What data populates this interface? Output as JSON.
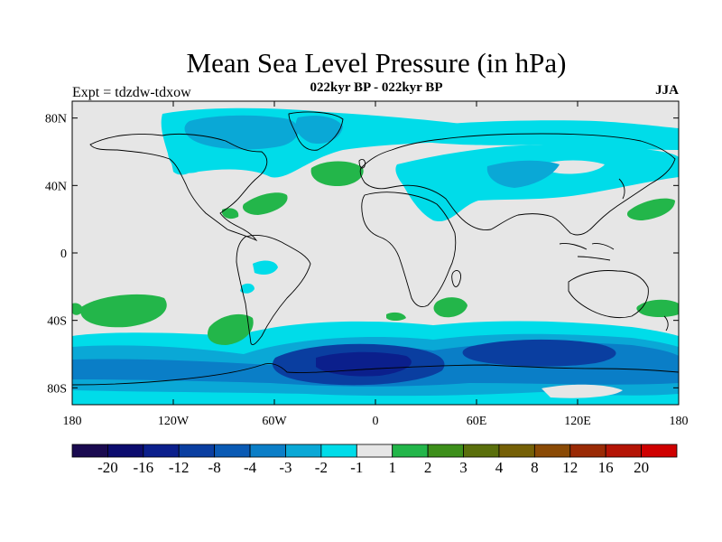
{
  "header": {
    "title": "Mean Sea Level Pressure (in hPa)",
    "subtitle": "022kyr BP - 022kyr BP",
    "expt": "Expt = tdzdw-tdxow",
    "season": "JJA"
  },
  "map": {
    "x_ticks": [
      "180",
      "120W",
      "60W",
      "0",
      "60E",
      "120E",
      "180"
    ],
    "y_ticks": [
      "80N",
      "40N",
      "0",
      "40S",
      "80S"
    ],
    "y_values": [
      80,
      40,
      0,
      -40,
      -80
    ],
    "lon_range": [
      -180,
      180
    ],
    "lat_range": [
      -90,
      90
    ],
    "background_color": "#e6e6e6"
  },
  "colorbar": {
    "colors": [
      "#1a0a50",
      "#0c0c6e",
      "#0b1f8c",
      "#0a3ea0",
      "#0a5ab4",
      "#0b7ec7",
      "#0aa8d6",
      "#00dce9",
      "#e6e6e6",
      "#23b64a",
      "#3d8f1b",
      "#5a6f0c",
      "#756006",
      "#8a4a05",
      "#9a2a05",
      "#b41405",
      "#cf0000"
    ],
    "labels": [
      "-20",
      "-16",
      "-12",
      "-8",
      "-4",
      "-3",
      "-2",
      "-1",
      "1",
      "2",
      "3",
      "4",
      "8",
      "12",
      "16",
      "20"
    ]
  }
}
